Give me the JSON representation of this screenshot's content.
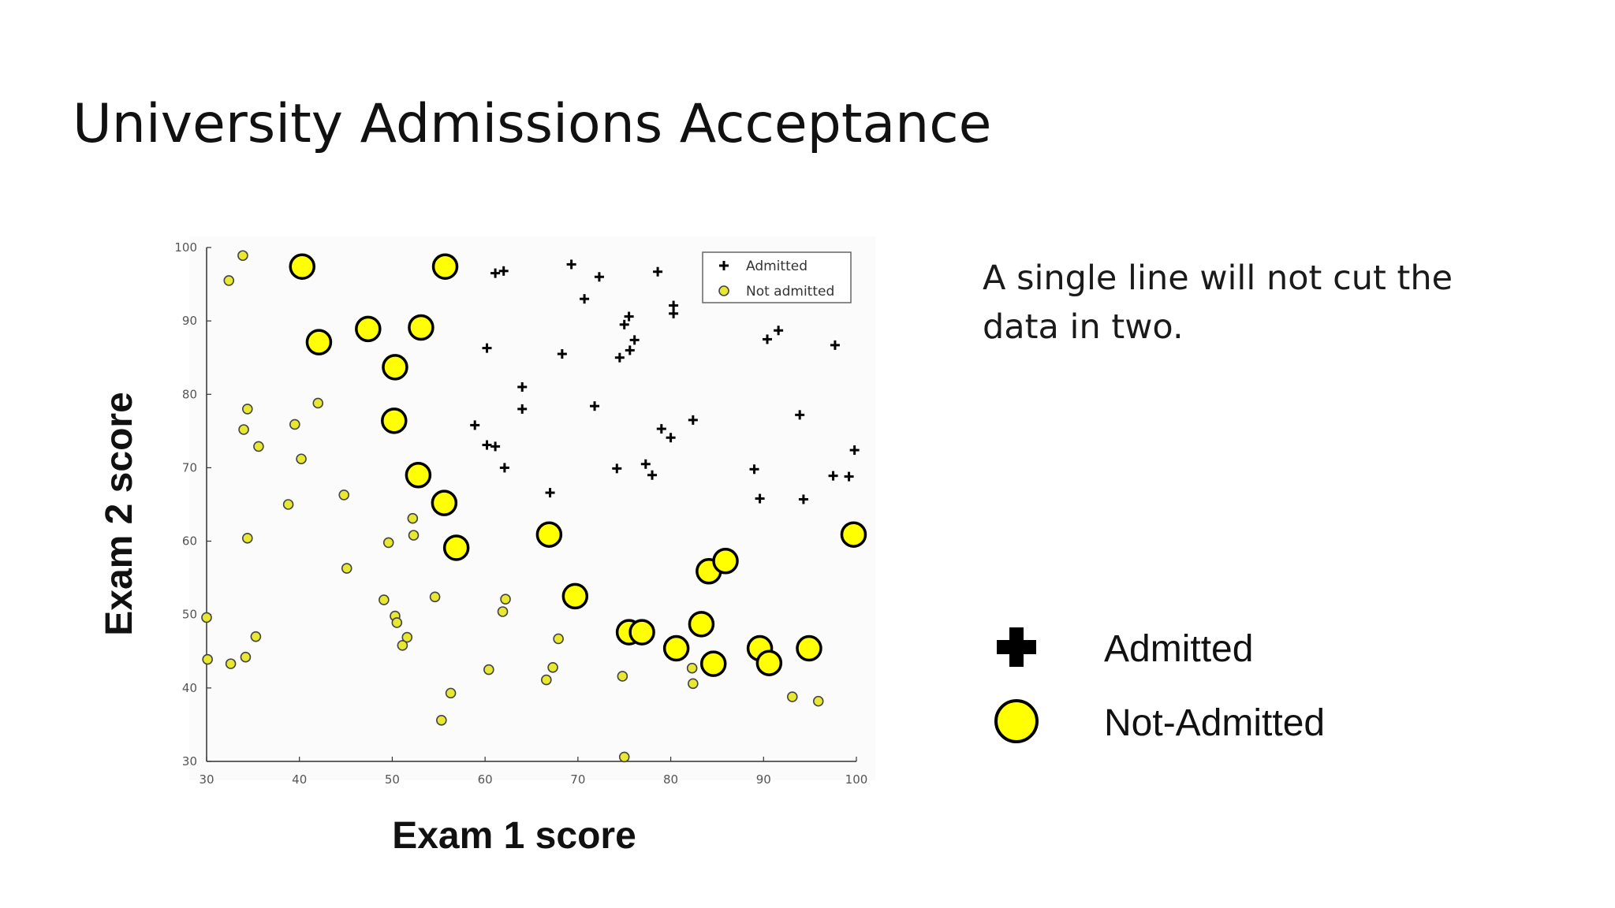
{
  "slide": {
    "title": "University Admissions Acceptance",
    "note": "A single line will not cut the data in two."
  },
  "big_legend": {
    "admitted": "Admitted",
    "not_admitted": "Not-Admitted"
  },
  "colors": {
    "marker_yellow": "#ffff00",
    "small_marker_yellow": "#e8e830",
    "stroke": "#000000"
  },
  "chart_data": {
    "type": "scatter",
    "xlabel": "Exam 1 score",
    "ylabel": "Exam 2 score",
    "xlim": [
      30,
      100
    ],
    "ylim": [
      30,
      100
    ],
    "xticks": [
      30,
      40,
      50,
      60,
      70,
      80,
      90,
      100
    ],
    "yticks": [
      30,
      40,
      50,
      60,
      70,
      80,
      90,
      100
    ],
    "legend": {
      "placement": "top-right",
      "entries": [
        "Admitted",
        "Not admitted"
      ]
    },
    "series": [
      {
        "name": "Admitted",
        "marker": "plus",
        "points": [
          [
            60.2,
            86.3
          ],
          [
            61.1,
            96.5
          ],
          [
            62.0,
            96.8
          ],
          [
            64.0,
            81.0
          ],
          [
            64.0,
            78.0
          ],
          [
            58.9,
            75.8
          ],
          [
            60.2,
            73.1
          ],
          [
            61.1,
            72.9
          ],
          [
            62.1,
            70.0
          ],
          [
            67.0,
            66.6
          ],
          [
            68.3,
            85.5
          ],
          [
            69.3,
            97.7
          ],
          [
            70.7,
            93.0
          ],
          [
            72.3,
            96.0
          ],
          [
            71.8,
            78.4
          ],
          [
            74.5,
            85.0
          ],
          [
            75.0,
            89.5
          ],
          [
            75.5,
            90.6
          ],
          [
            75.6,
            86.0
          ],
          [
            76.1,
            87.4
          ],
          [
            74.2,
            69.9
          ],
          [
            77.3,
            70.5
          ],
          [
            78.0,
            69.0
          ],
          [
            78.6,
            96.7
          ],
          [
            79.0,
            75.3
          ],
          [
            80.0,
            74.1
          ],
          [
            80.3,
            92.1
          ],
          [
            80.3,
            91.0
          ],
          [
            82.4,
            76.5
          ],
          [
            89.0,
            69.8
          ],
          [
            89.6,
            65.8
          ],
          [
            90.4,
            87.5
          ],
          [
            91.6,
            88.7
          ],
          [
            93.9,
            77.2
          ],
          [
            94.3,
            65.7
          ],
          [
            97.5,
            68.9
          ],
          [
            97.7,
            86.7
          ],
          [
            99.2,
            68.8
          ],
          [
            99.8,
            72.4
          ]
        ]
      },
      {
        "name": "Not admitted",
        "marker": "small-circle",
        "points": [
          [
            33.9,
            98.9
          ],
          [
            32.4,
            95.5
          ],
          [
            34.4,
            78.0
          ],
          [
            34.0,
            75.2
          ],
          [
            35.6,
            72.9
          ],
          [
            42.0,
            78.8
          ],
          [
            39.5,
            75.9
          ],
          [
            40.2,
            71.2
          ],
          [
            38.8,
            65.0
          ],
          [
            44.8,
            66.3
          ],
          [
            34.4,
            60.4
          ],
          [
            45.1,
            56.3
          ],
          [
            49.6,
            59.8
          ],
          [
            52.2,
            63.1
          ],
          [
            52.3,
            60.8
          ],
          [
            49.1,
            52.0
          ],
          [
            50.3,
            49.8
          ],
          [
            50.5,
            48.9
          ],
          [
            51.6,
            46.9
          ],
          [
            51.1,
            45.8
          ],
          [
            54.6,
            52.4
          ],
          [
            56.3,
            39.3
          ],
          [
            55.3,
            35.6
          ],
          [
            60.4,
            42.5
          ],
          [
            61.9,
            50.4
          ],
          [
            62.2,
            52.1
          ],
          [
            67.3,
            42.8
          ],
          [
            67.9,
            46.7
          ],
          [
            66.6,
            41.1
          ],
          [
            74.8,
            41.6
          ],
          [
            75.0,
            30.6
          ],
          [
            82.3,
            42.7
          ],
          [
            82.4,
            40.6
          ],
          [
            93.1,
            38.8
          ],
          [
            95.9,
            38.2
          ],
          [
            30.0,
            49.6
          ],
          [
            30.1,
            43.9
          ],
          [
            32.6,
            43.3
          ],
          [
            34.2,
            44.2
          ],
          [
            35.3,
            47.0
          ]
        ]
      },
      {
        "name": "Not-Admitted",
        "marker": "large-circle",
        "points": [
          [
            40.3,
            97.4
          ],
          [
            42.1,
            87.1
          ],
          [
            47.4,
            88.9
          ],
          [
            53.1,
            89.1
          ],
          [
            55.7,
            97.4
          ],
          [
            50.3,
            83.7
          ],
          [
            50.2,
            76.4
          ],
          [
            52.8,
            69.0
          ],
          [
            55.6,
            65.2
          ],
          [
            56.9,
            59.1
          ],
          [
            66.9,
            60.9
          ],
          [
            69.7,
            52.5
          ],
          [
            75.5,
            47.6
          ],
          [
            76.9,
            47.6
          ],
          [
            80.6,
            45.4
          ],
          [
            83.3,
            48.7
          ],
          [
            84.1,
            55.9
          ],
          [
            84.6,
            43.3
          ],
          [
            85.9,
            57.3
          ],
          [
            89.6,
            45.4
          ],
          [
            90.6,
            43.4
          ],
          [
            94.9,
            45.4
          ],
          [
            99.7,
            60.9
          ]
        ]
      }
    ]
  }
}
